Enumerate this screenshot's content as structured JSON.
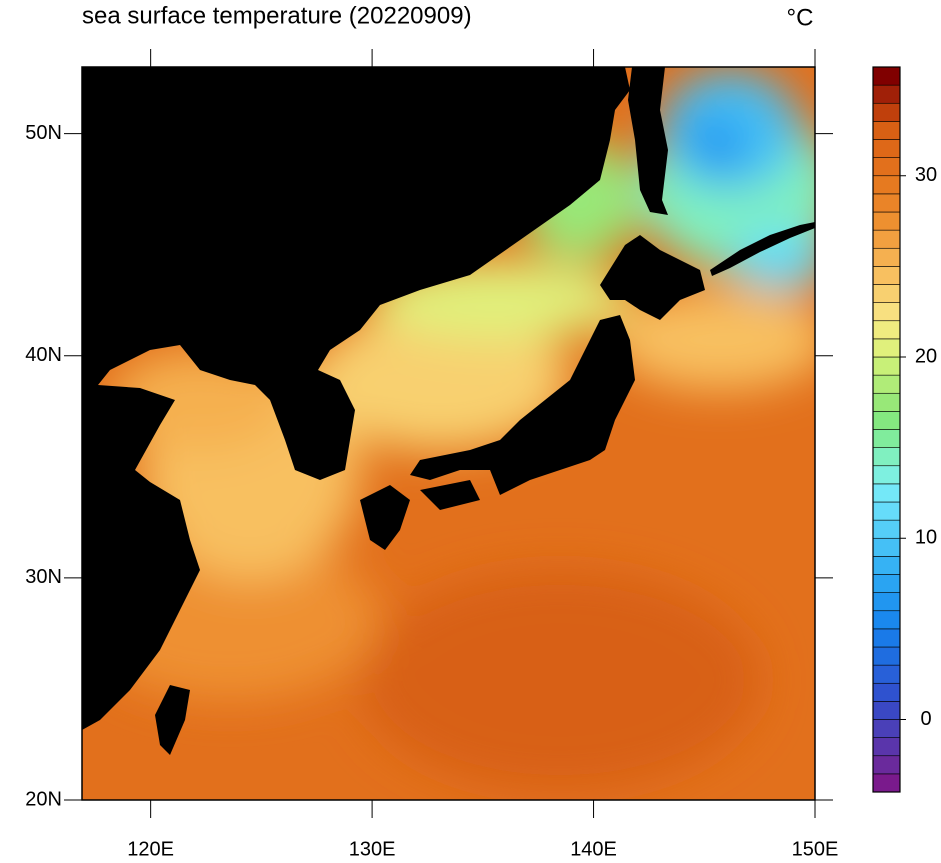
{
  "map": {
    "title": "sea surface temperature (20220909)",
    "units": "°C",
    "lonlim": [
      116.9,
      150
    ],
    "latlim": [
      20,
      53
    ],
    "lonticks": [
      {
        "value": 120,
        "label": "120E"
      },
      {
        "value": 130,
        "label": "130E"
      },
      {
        "value": 140,
        "label": "140E"
      },
      {
        "value": 150,
        "label": "150E"
      }
    ],
    "latticks": [
      {
        "value": 20,
        "label": "20N"
      },
      {
        "value": 30,
        "label": "30N"
      },
      {
        "value": 40,
        "label": "40N"
      },
      {
        "value": 50,
        "label": "50N"
      }
    ],
    "colorbar": {
      "lim": [
        -4,
        36
      ],
      "ticks": [
        0,
        10,
        20,
        30
      ],
      "colors": [
        "#7a1a8c",
        "#6a2a9c",
        "#5a35ab",
        "#4a40b8",
        "#3a48c4",
        "#2f52cf",
        "#2860d8",
        "#1f6de0",
        "#1a7ae8",
        "#1a88ee",
        "#2196f0",
        "#2aa4f2",
        "#36b2f4",
        "#45c0f6",
        "#55cef8",
        "#66dcfa",
        "#74e8f8",
        "#7ef0e0",
        "#80f0c0",
        "#80ec9c",
        "#84e880",
        "#98e878",
        "#b0ec78",
        "#c8f078",
        "#e0f07c",
        "#f0ec80",
        "#f8e080",
        "#f8d070",
        "#f8c060",
        "#f5b050",
        "#f2a040",
        "#ee9030",
        "#ea8428",
        "#e67a20",
        "#e2701c",
        "#de6818",
        "#d86014",
        "#c0400c",
        "#a02008",
        "#800000"
      ]
    }
  }
}
